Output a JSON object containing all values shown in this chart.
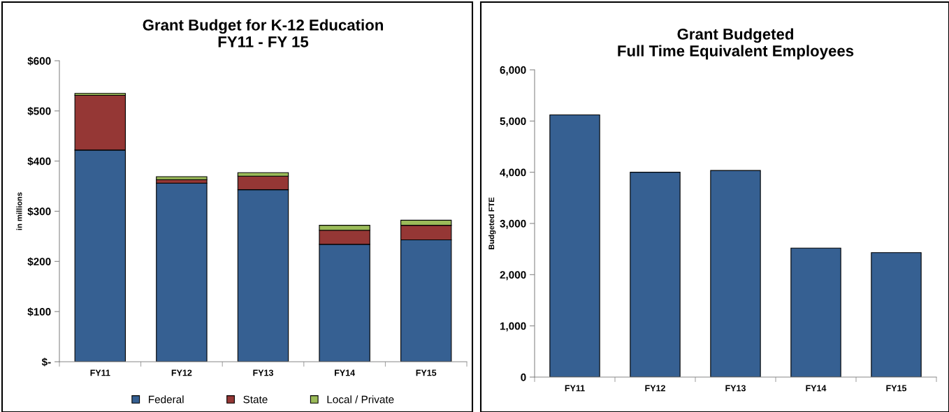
{
  "chart_data": [
    {
      "type": "bar",
      "title": "Grant Budget for K-12 Education\nFY11 - FY 15",
      "ylabel": "in millions",
      "categories": [
        "FY11",
        "FY12",
        "FY13",
        "FY14",
        "FY15"
      ],
      "stacked": true,
      "series": [
        {
          "name": "Federal",
          "color": "#366092",
          "values": [
            422,
            356,
            343,
            234,
            243
          ]
        },
        {
          "name": "State",
          "color": "#953735",
          "values": [
            109,
            7,
            27,
            28,
            29
          ]
        },
        {
          "name": "Local / Private",
          "color": "#9bbb59",
          "values": [
            4,
            6,
            7,
            10,
            10
          ]
        }
      ],
      "ylim": [
        0,
        600
      ],
      "yticks": [
        {
          "value": 0,
          "label": "$-"
        },
        {
          "value": 100,
          "label": "$100"
        },
        {
          "value": 200,
          "label": "$200"
        },
        {
          "value": 300,
          "label": "$300"
        },
        {
          "value": 400,
          "label": "$400"
        },
        {
          "value": 500,
          "label": "$500"
        },
        {
          "value": 600,
          "label": "$600"
        }
      ],
      "grid": false,
      "legend": "bottom"
    },
    {
      "type": "bar",
      "title": "Grant Budgeted\nFull Time Equivalent Employees",
      "ylabel": "Budgeted FTE",
      "categories": [
        "FY11",
        "FY12",
        "FY13",
        "FY14",
        "FY15"
      ],
      "series": [
        {
          "color": "#366092",
          "values": [
            5120,
            4000,
            4035,
            2520,
            2430
          ]
        }
      ],
      "ylim": [
        0,
        6000
      ],
      "yticks": [
        {
          "value": 0,
          "label": "0"
        },
        {
          "value": 1000,
          "label": "1,000"
        },
        {
          "value": 2000,
          "label": "2,000"
        },
        {
          "value": 3000,
          "label": "3,000"
        },
        {
          "value": 4000,
          "label": "4,000"
        },
        {
          "value": 5000,
          "label": "5,000"
        },
        {
          "value": 6000,
          "label": "6,000"
        }
      ],
      "grid": false
    }
  ]
}
